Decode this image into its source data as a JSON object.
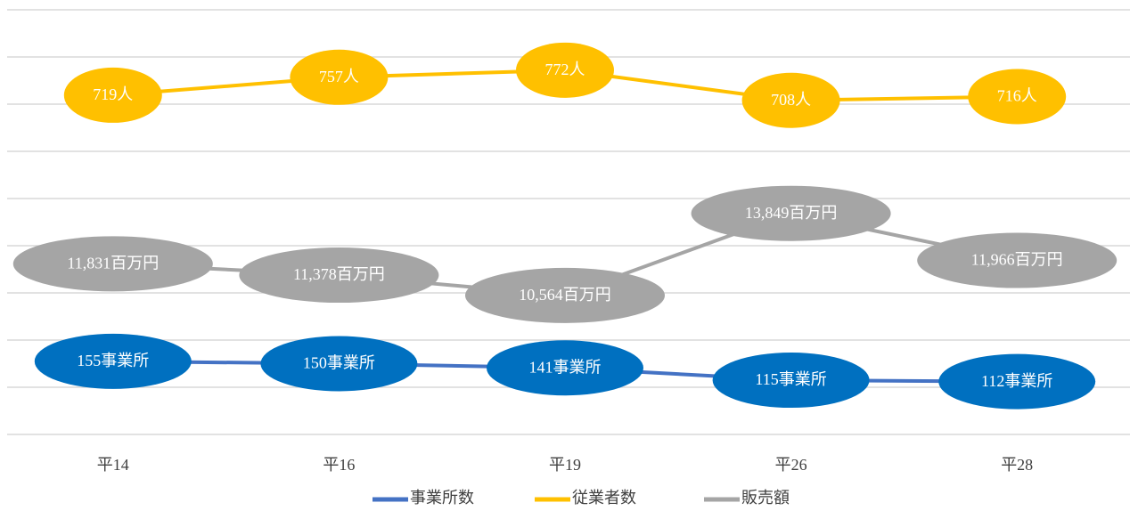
{
  "chart_data": {
    "type": "line",
    "categories": [
      "平14",
      "平16",
      "平19",
      "平26",
      "平28"
    ],
    "series": [
      {
        "name": "事業所数",
        "color": "#4472c4",
        "values": [
          155,
          150,
          141,
          115,
          112
        ],
        "value_labels": [
          "155事業所",
          "150事業所",
          "141事業所",
          "115事業所",
          "112事業所"
        ]
      },
      {
        "name": "従業者数",
        "color": "#ffc000",
        "values": [
          719,
          757,
          772,
          708,
          716
        ],
        "value_labels": [
          "719人",
          "757人",
          "772人",
          "708人",
          "716人"
        ]
      },
      {
        "name": "販売額",
        "color": "#a5a5a5",
        "axis": "y2",
        "values": [
          11831,
          11378,
          10564,
          13849,
          11966
        ],
        "value_labels": [
          "11,831百万円",
          "11,378百万円",
          "10,564百万円",
          "13,849百万円",
          "11,966百万円"
        ]
      }
    ],
    "ylim": [
      0,
      900
    ],
    "yticks": [
      0,
      100,
      200,
      300,
      400,
      500,
      600,
      700,
      800,
      900
    ],
    "y2lim": [
      5000,
      22000
    ],
    "grid": true,
    "legend": "bottom"
  }
}
